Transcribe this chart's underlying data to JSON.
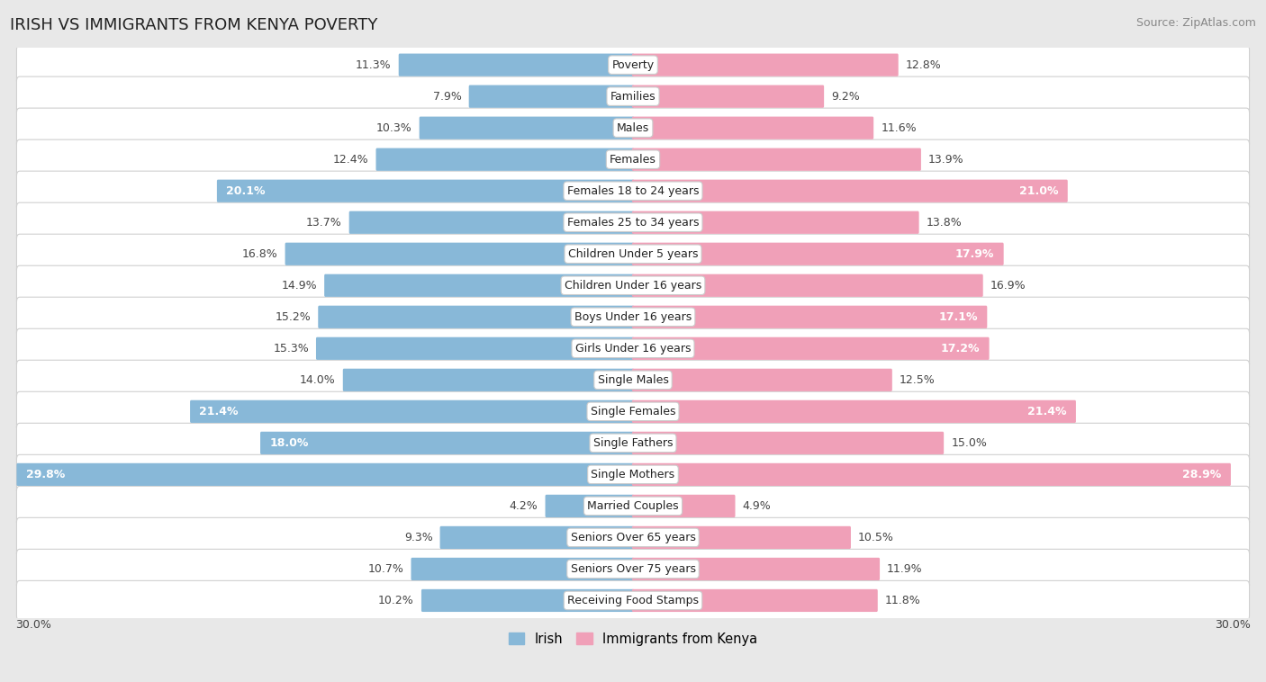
{
  "title": "IRISH VS IMMIGRANTS FROM KENYA POVERTY",
  "source": "Source: ZipAtlas.com",
  "categories": [
    "Poverty",
    "Families",
    "Males",
    "Females",
    "Females 18 to 24 years",
    "Females 25 to 34 years",
    "Children Under 5 years",
    "Children Under 16 years",
    "Boys Under 16 years",
    "Girls Under 16 years",
    "Single Males",
    "Single Females",
    "Single Fathers",
    "Single Mothers",
    "Married Couples",
    "Seniors Over 65 years",
    "Seniors Over 75 years",
    "Receiving Food Stamps"
  ],
  "irish_values": [
    11.3,
    7.9,
    10.3,
    12.4,
    20.1,
    13.7,
    16.8,
    14.9,
    15.2,
    15.3,
    14.0,
    21.4,
    18.0,
    29.8,
    4.2,
    9.3,
    10.7,
    10.2
  ],
  "kenya_values": [
    12.8,
    9.2,
    11.6,
    13.9,
    21.0,
    13.8,
    17.9,
    16.9,
    17.1,
    17.2,
    12.5,
    21.4,
    15.0,
    28.9,
    4.9,
    10.5,
    11.9,
    11.8
  ],
  "irish_color": "#88b8d8",
  "kenya_color": "#f0a0b8",
  "highlight_threshold": 17.0,
  "bar_height": 0.62,
  "xlim": 30.0,
  "background_color": "#e8e8e8",
  "row_color": "#ffffff",
  "legend_irish": "Irish",
  "legend_kenya": "Immigrants from Kenya",
  "axis_label": "30.0%",
  "label_fontsize": 9,
  "cat_fontsize": 9,
  "title_fontsize": 13,
  "source_fontsize": 9
}
